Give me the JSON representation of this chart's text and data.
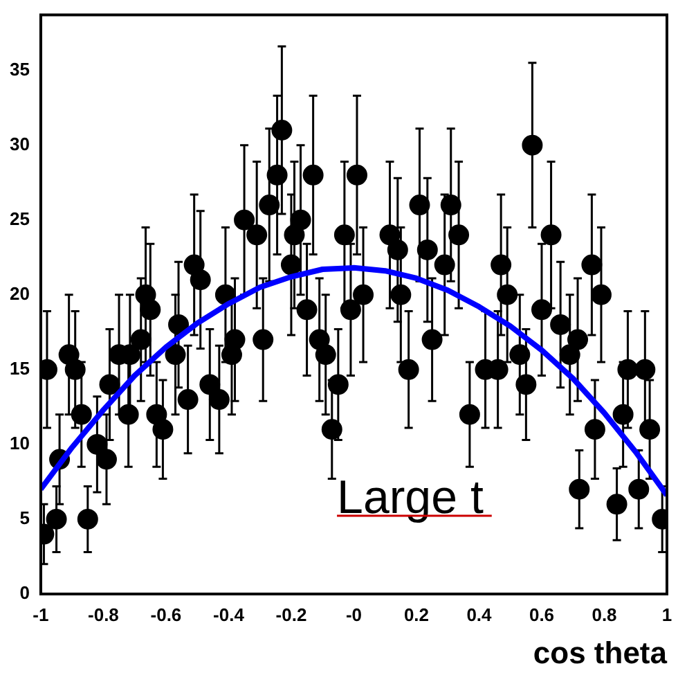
{
  "chart_data": {
    "type": "scatter",
    "xlabel": "cos theta",
    "xlim": [
      -1,
      1
    ],
    "ylim": [
      0,
      38.7
    ],
    "xticks": [
      -1,
      -0.8,
      -0.6,
      -0.4,
      -0.2,
      {
        "value": 0,
        "label": "-0"
      },
      0.2,
      0.4,
      0.6,
      0.8,
      1
    ],
    "yticks": [
      0,
      5,
      10,
      15,
      20,
      25,
      30,
      35
    ],
    "grid": false,
    "legend": false,
    "marker": "circle",
    "annotations": [
      "Large t"
    ],
    "series": [
      {
        "type": "scatter",
        "color": "#000000",
        "x": [
          -0.99,
          -0.98,
          -0.95,
          -0.94,
          -0.91,
          -0.89,
          -0.87,
          -0.85,
          -0.82,
          -0.79,
          -0.78,
          -0.75,
          -0.72,
          -0.715,
          -0.68,
          -0.665,
          -0.65,
          -0.63,
          -0.61,
          -0.57,
          -0.56,
          -0.53,
          -0.51,
          -0.49,
          -0.46,
          -0.43,
          -0.41,
          -0.39,
          -0.38,
          -0.35,
          -0.31,
          -0.29,
          -0.27,
          -0.245,
          -0.23,
          -0.2,
          -0.19,
          -0.17,
          -0.15,
          -0.13,
          -0.11,
          -0.09,
          -0.07,
          -0.05,
          -0.03,
          -0.01,
          0.01,
          0.03,
          0.115,
          0.14,
          0.15,
          0.175,
          0.21,
          0.235,
          0.25,
          0.29,
          0.31,
          0.335,
          0.37,
          0.42,
          0.46,
          0.47,
          0.49,
          0.53,
          0.55,
          0.57,
          0.6,
          0.63,
          0.66,
          0.69,
          0.715,
          0.72,
          0.76,
          0.77,
          0.79,
          0.84,
          0.86,
          0.875,
          0.91,
          0.93,
          0.945,
          0.985
        ],
        "values": [
          4,
          15,
          5,
          9,
          16,
          15,
          12,
          5,
          10,
          9,
          14,
          16,
          12,
          16,
          17,
          20,
          19,
          12,
          11,
          16,
          18,
          13,
          22,
          21,
          14,
          13,
          20,
          16,
          17,
          25,
          24,
          17,
          26,
          28,
          31,
          22,
          24,
          25,
          19,
          28,
          17,
          16,
          11,
          14,
          24,
          19,
          28,
          20,
          24,
          23,
          20,
          15,
          26,
          23,
          17,
          22,
          26,
          24,
          12,
          15,
          15,
          22,
          20,
          16,
          14,
          30,
          19,
          24,
          18,
          16,
          17,
          7,
          22,
          11,
          20,
          6,
          12,
          15,
          7,
          15,
          11,
          5
        ],
        "errors": [
          2,
          3.9,
          2.2,
          3,
          4,
          3.9,
          3.5,
          2.2,
          3.2,
          3,
          3.7,
          4,
          3.5,
          4,
          4.1,
          4.5,
          4.4,
          3.5,
          3.3,
          4,
          4.2,
          3.6,
          4.7,
          4.6,
          3.7,
          3.6,
          4.5,
          4,
          4.1,
          5,
          4.9,
          4.1,
          5.1,
          5.3,
          5.6,
          4.7,
          4.9,
          5,
          4.4,
          5.3,
          4.1,
          4,
          3.3,
          3.7,
          4.9,
          4.4,
          5.3,
          4.5,
          4.9,
          4.8,
          4.5,
          3.9,
          5.1,
          4.8,
          4.1,
          4.7,
          5.1,
          4.9,
          3.5,
          3.9,
          3.9,
          4.7,
          4.5,
          4,
          3.7,
          5.5,
          4.4,
          4.9,
          4.2,
          4,
          4.1,
          2.6,
          4.7,
          3.3,
          4.5,
          2.4,
          3.5,
          3.9,
          2.6,
          3.9,
          3.3,
          2.2
        ]
      },
      {
        "type": "line",
        "color": "#0000ff",
        "marker": "none",
        "x": [
          -1,
          -0.9,
          -0.8,
          -0.7,
          -0.6,
          -0.5,
          -0.4,
          -0.3,
          -0.2,
          -0.1,
          0,
          0.1,
          0.2,
          0.3,
          0.4,
          0.5,
          0.6,
          0.7,
          0.8,
          0.9,
          1
        ],
        "values": [
          7,
          9.8,
          12.3,
          14.6,
          16.5,
          18.1,
          19.4,
          20.5,
          21.2,
          21.7,
          21.8,
          21.6,
          21.1,
          20.3,
          19.2,
          17.9,
          16.3,
          14.4,
          12.1,
          9.5,
          6.6
        ]
      }
    ]
  }
}
